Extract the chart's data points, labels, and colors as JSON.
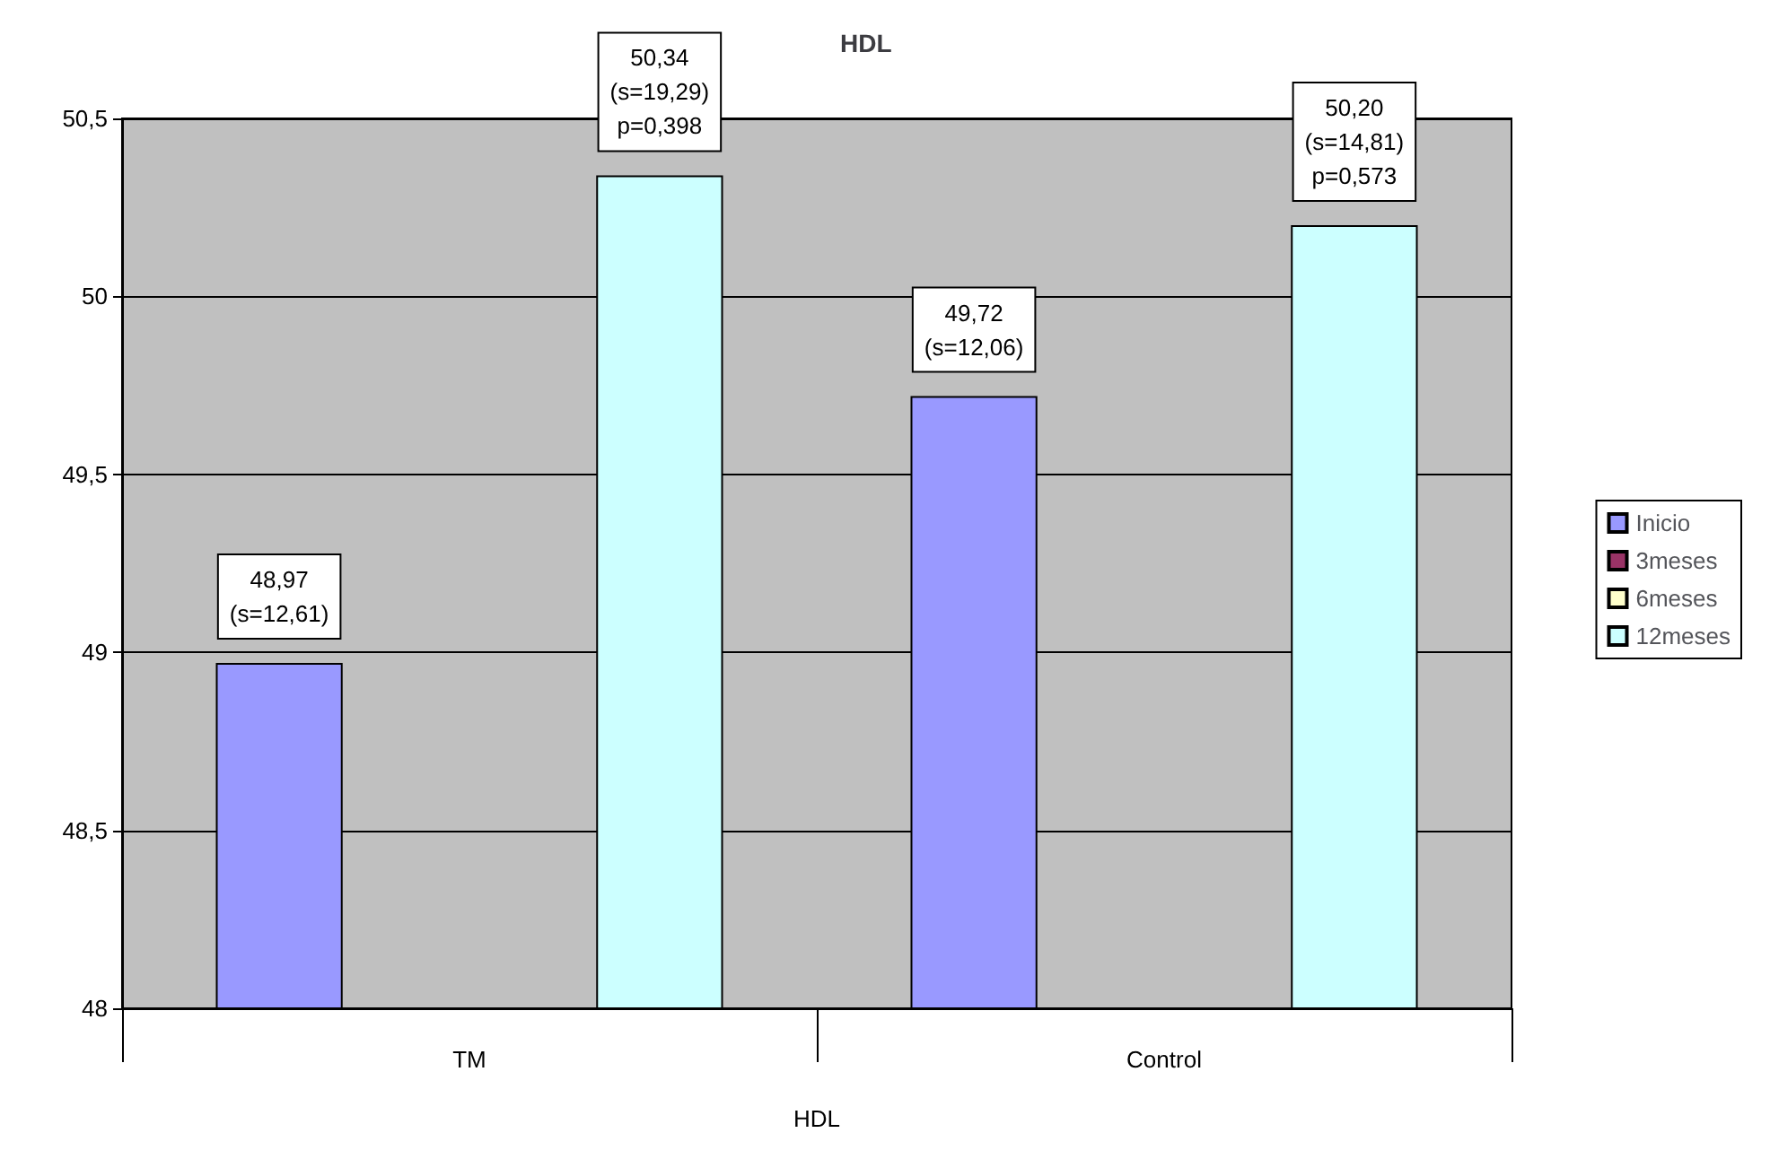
{
  "chart_data": {
    "type": "bar",
    "title": "HDL",
    "xlabel": "HDL",
    "categories": [
      "TM",
      "Control"
    ],
    "series": [
      {
        "name": "Inicio",
        "color": "#9999ff",
        "values": [
          48.97,
          49.72
        ],
        "value_labels": [
          "48,97\n(s=12,61)",
          "49,72\n(s=12,06)"
        ]
      },
      {
        "name": "3meses",
        "color": "#993366",
        "values": [
          null,
          null
        ]
      },
      {
        "name": "6meses",
        "color": "#ffffcc",
        "values": [
          null,
          null
        ]
      },
      {
        "name": "12meses",
        "color": "#ccffff",
        "values": [
          50.34,
          50.2
        ],
        "value_labels": [
          "50,34\n(s=19,29)\np=0,398",
          "50,20\n(s=14,81)\np=0,573"
        ]
      }
    ],
    "ylim": [
      48,
      50.5
    ],
    "yticks": [
      48,
      {
        "value": 48.5,
        "label": "48,5"
      },
      49,
      {
        "value": 49.5,
        "label": "49,5"
      },
      50,
      {
        "value": 50.5,
        "label": "50,5"
      }
    ],
    "grid": "y",
    "legend": "right"
  }
}
